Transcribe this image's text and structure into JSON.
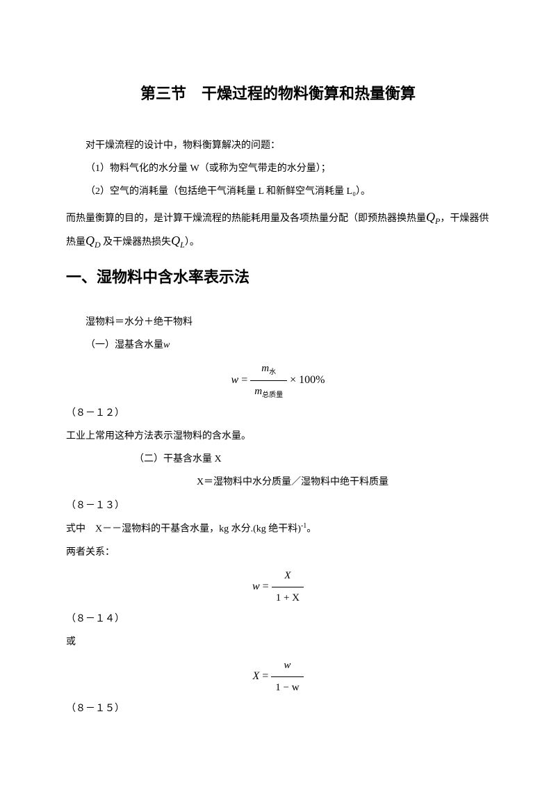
{
  "title": "第三节　干燥过程的物料衡算和热量衡算",
  "intro": {
    "p1": "对干燥流程的设计中，物料衡算解决的问题：",
    "p2": "（1）物料气化的水分量 W（或称为空气带走的水分量）；",
    "p3": "（2）空气的消耗量（包括绝干气消耗量 L 和新鲜空气消耗量 L₀）。",
    "li0": "0",
    "p4a": "而热量衡算的目的，是计算干燥流程的热能耗用量及各项热量分配（即预热器换热量",
    "p4b": "，干燥器供热量",
    "p4c": " 及干燥器热损失",
    "p4d": "）。",
    "qp": "Q",
    "qp_sub": "P",
    "qd": "Q",
    "qd_sub": "D",
    "ql": "Q",
    "ql_sub": "L"
  },
  "section1": {
    "heading": "一、湿物料中含水率表示法",
    "p1": "湿物料＝水分＋绝干物料",
    "sub1_title": "（一）湿基含水量",
    "w_var": "w",
    "eq1_lhs": "w",
    "eq1_eq": " = ",
    "eq1_num_m": "m",
    "eq1_num_sub": "水",
    "eq1_den_m": "m",
    "eq1_den_sub": "总质量",
    "eq1_tail": " × 100%",
    "eq1_label": "（８－１２）",
    "p2": "工业上常用这种方法表示湿物料的含水量。",
    "sub2_title": "（二）干基含水量 X",
    "eq2_text": "X＝湿物料中水分质量／湿物料中绝干料质量",
    "eq2_label": "（８－１３）",
    "p3a": "式中　X－－湿物料的干基含水量，kg 水分.(kg 绝干料)",
    "p3b": "。",
    "p3_sup": "-1",
    "p4": "两者关系：",
    "eq3_lhs": "w",
    "eq3_eq": " = ",
    "eq3_num": "X",
    "eq3_den": "1 + X",
    "eq3_label": "（８－１４）",
    "p5": "或",
    "eq4_lhs": "X",
    "eq4_eq": " = ",
    "eq4_num": "w",
    "eq4_den": "1 − w",
    "eq4_label": "（８－１５）"
  },
  "colors": {
    "text": "#000000",
    "background": "#ffffff"
  }
}
